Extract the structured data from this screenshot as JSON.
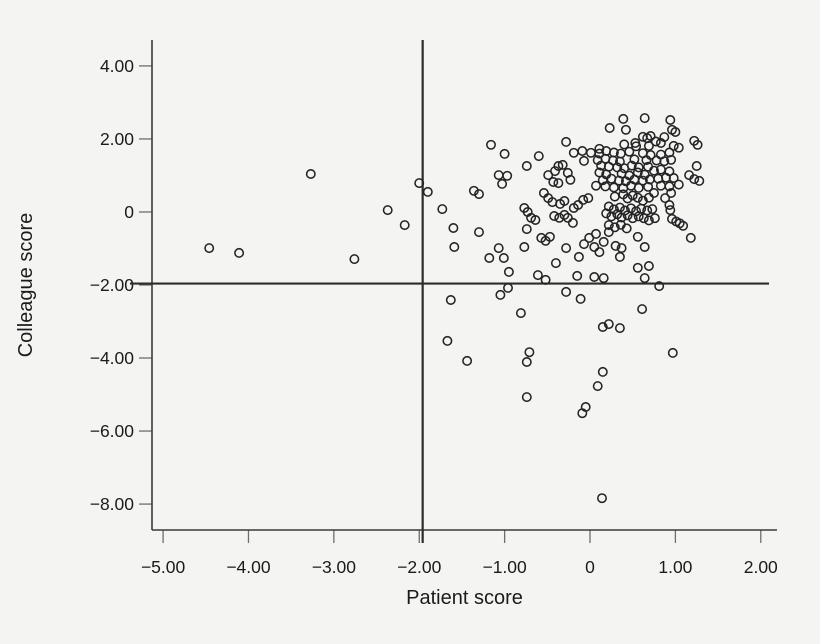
{
  "colors": {
    "background": "#f4f4f3",
    "axis_line": "#3a3a3a",
    "tick_mark": "#6e6e6e",
    "label_text": "#1b1b1b",
    "reference_line": "#2c2c2c",
    "marker_stroke": "#242424"
  },
  "chart_data": {
    "type": "scatter",
    "title": "",
    "xlabel": "Patient score",
    "ylabel": "Colleague score",
    "xlim": [
      -5.13,
      2.19
    ],
    "ylim": [
      -8.71,
      4.71
    ],
    "grid": false,
    "legend": null,
    "marker": {
      "shape": "open-circle",
      "radius_px": 4.2,
      "stroke": "#242424"
    },
    "x_ticks": {
      "values": [
        -5,
        -4,
        -3,
        -2,
        -1,
        0,
        1,
        2
      ],
      "labels": [
        "−5.00",
        "−4.00",
        "−3.00",
        "−2.00",
        "−1.00",
        "0",
        "1.00",
        "2.00"
      ]
    },
    "y_ticks": {
      "values": [
        4,
        2,
        0,
        -2,
        -4,
        -6,
        -8
      ],
      "labels": [
        "4.00",
        "2.00",
        "0",
        "−2.00",
        "−4.00",
        "−6.00",
        "−8.00"
      ]
    },
    "reference_lines": {
      "vertical_x": -1.96,
      "horizontal_y": -1.96
    },
    "points": [
      [
        -4.46,
        -0.99
      ],
      [
        -4.11,
        -1.12
      ],
      [
        -3.27,
        1.04
      ],
      [
        -2.76,
        -1.29
      ],
      [
        -2.37,
        0.05
      ],
      [
        -2.17,
        -0.36
      ],
      [
        -2.0,
        0.79
      ],
      [
        -1.9,
        0.55
      ],
      [
        -1.73,
        0.08
      ],
      [
        -1.67,
        -3.53
      ],
      [
        -1.63,
        -2.41
      ],
      [
        -1.6,
        -0.44
      ],
      [
        -1.59,
        -0.96
      ],
      [
        -1.44,
        -4.08
      ],
      [
        -1.36,
        0.58
      ],
      [
        -1.3,
        0.49
      ],
      [
        -1.3,
        -0.55
      ],
      [
        -1.18,
        -1.26
      ],
      [
        -1.16,
        1.84
      ],
      [
        -1.07,
        1.01
      ],
      [
        -1.07,
        -0.99
      ],
      [
        -1.05,
        -2.27
      ],
      [
        -1.03,
        0.77
      ],
      [
        -1.01,
        -1.26
      ],
      [
        -1.0,
        1.59
      ],
      [
        -0.97,
        0.99
      ],
      [
        -0.96,
        -2.08
      ],
      [
        -0.95,
        -1.64
      ],
      [
        -0.81,
        -2.77
      ],
      [
        -0.77,
        0.11
      ],
      [
        -0.77,
        -0.96
      ],
      [
        -0.74,
        1.26
      ],
      [
        -0.74,
        -0.47
      ],
      [
        -0.74,
        -4.11
      ],
      [
        -0.74,
        -5.07
      ],
      [
        -0.73,
        0.0
      ],
      [
        -0.71,
        -3.84
      ],
      [
        -0.69,
        -0.16
      ],
      [
        -0.64,
        -0.22
      ],
      [
        -0.61,
        -1.73
      ],
      [
        -0.6,
        1.53
      ],
      [
        -0.57,
        -0.71
      ],
      [
        -0.54,
        0.52
      ],
      [
        -0.52,
        -0.79
      ],
      [
        -0.52,
        -1.86
      ],
      [
        -0.49,
        1.01
      ],
      [
        -0.49,
        0.38
      ],
      [
        -0.47,
        -0.68
      ],
      [
        -0.44,
        0.27
      ],
      [
        -0.43,
        0.82
      ],
      [
        -0.42,
        -0.11
      ],
      [
        -0.41,
        1.12
      ],
      [
        -0.4,
        -1.4
      ],
      [
        -0.37,
        1.26
      ],
      [
        -0.37,
        0.79
      ],
      [
        -0.36,
        -0.16
      ],
      [
        -0.35,
        0.22
      ],
      [
        -0.32,
        1.29
      ],
      [
        -0.3,
        0.3
      ],
      [
        -0.3,
        -0.08
      ],
      [
        -0.28,
        1.92
      ],
      [
        -0.28,
        -0.99
      ],
      [
        -0.28,
        -2.19
      ],
      [
        -0.26,
        1.07
      ],
      [
        -0.26,
        -0.16
      ],
      [
        -0.23,
        0.88
      ],
      [
        -0.2,
        -0.3
      ],
      [
        -0.19,
        1.62
      ],
      [
        -0.19,
        0.11
      ],
      [
        -0.15,
        -1.75
      ],
      [
        -0.14,
        0.19
      ],
      [
        -0.13,
        -1.23
      ],
      [
        -0.11,
        -2.38
      ],
      [
        -0.09,
        1.67
      ],
      [
        -0.09,
        -5.51
      ],
      [
        -0.08,
        0.33
      ],
      [
        -0.07,
        1.4
      ],
      [
        -0.07,
        -0.88
      ],
      [
        -0.05,
        -5.34
      ],
      [
        -0.02,
        0.38
      ],
      [
        -0.01,
        -0.71
      ],
      [
        0.01,
        1.62
      ],
      [
        0.05,
        -0.96
      ],
      [
        0.05,
        -1.78
      ],
      [
        0.07,
        -0.6
      ],
      [
        0.07,
        0.72
      ],
      [
        0.09,
        1.42
      ],
      [
        0.09,
        -4.77
      ],
      [
        0.11,
        1.73
      ],
      [
        0.11,
        1.6
      ],
      [
        0.19,
        1.67
      ],
      [
        0.28,
        1.63
      ],
      [
        0.36,
        1.6
      ],
      [
        0.46,
        1.65
      ],
      [
        0.62,
        1.61
      ],
      [
        0.71,
        1.56
      ],
      [
        0.18,
        1.46
      ],
      [
        0.27,
        1.41
      ],
      [
        0.35,
        1.38
      ],
      [
        0.52,
        1.44
      ],
      [
        0.66,
        1.42
      ],
      [
        0.13,
        1.27
      ],
      [
        0.22,
        1.24
      ],
      [
        0.32,
        1.22
      ],
      [
        0.4,
        1.2
      ],
      [
        0.49,
        1.27
      ],
      [
        0.57,
        1.22
      ],
      [
        0.68,
        1.24
      ],
      [
        0.11,
        1.08
      ],
      [
        0.19,
        1.03
      ],
      [
        0.37,
        1.05
      ],
      [
        0.46,
        1.0
      ],
      [
        0.56,
        1.08
      ],
      [
        0.64,
        1.02
      ],
      [
        0.15,
        0.87
      ],
      [
        0.25,
        0.91
      ],
      [
        0.34,
        0.86
      ],
      [
        0.42,
        0.84
      ],
      [
        0.52,
        0.89
      ],
      [
        0.62,
        0.86
      ],
      [
        0.7,
        0.89
      ],
      [
        0.18,
        0.7
      ],
      [
        0.28,
        0.67
      ],
      [
        0.39,
        0.65
      ],
      [
        0.48,
        0.72
      ],
      [
        0.57,
        0.66
      ],
      [
        0.68,
        0.69
      ],
      [
        0.29,
        0.42
      ],
      [
        0.39,
        0.48
      ],
      [
        0.44,
        0.37
      ],
      [
        0.5,
        0.45
      ],
      [
        0.56,
        0.39
      ],
      [
        0.62,
        0.31
      ],
      [
        0.69,
        0.39
      ],
      [
        0.88,
        0.38
      ],
      [
        0.22,
        0.15
      ],
      [
        0.28,
        0.07
      ],
      [
        0.35,
        0.12
      ],
      [
        0.41,
        0.04
      ],
      [
        0.48,
        0.1
      ],
      [
        0.54,
        0.02
      ],
      [
        0.6,
        0.09
      ],
      [
        0.67,
        0.04
      ],
      [
        0.73,
        0.08
      ],
      [
        0.19,
        -0.04
      ],
      [
        0.25,
        -0.12
      ],
      [
        0.32,
        -0.06
      ],
      [
        0.37,
        -0.15
      ],
      [
        0.44,
        -0.09
      ],
      [
        0.5,
        -0.17
      ],
      [
        0.57,
        -0.12
      ],
      [
        0.63,
        -0.17
      ],
      [
        0.69,
        -0.23
      ],
      [
        0.76,
        -0.17
      ],
      [
        0.22,
        -0.36
      ],
      [
        0.29,
        -0.42
      ],
      [
        0.36,
        -0.35
      ],
      [
        0.43,
        -0.45
      ],
      [
        0.4,
        1.85
      ],
      [
        0.54,
        1.8
      ],
      [
        0.69,
        1.81
      ],
      [
        0.23,
        2.3
      ],
      [
        0.39,
        2.55
      ],
      [
        0.42,
        2.25
      ],
      [
        0.53,
        1.89
      ],
      [
        0.62,
        2.06
      ],
      [
        0.64,
        2.57
      ],
      [
        0.67,
        2.02
      ],
      [
        0.71,
        2.08
      ],
      [
        0.77,
        1.93
      ],
      [
        0.83,
        1.89
      ],
      [
        0.87,
        2.05
      ],
      [
        0.94,
        2.52
      ],
      [
        0.96,
        2.25
      ],
      [
        1.0,
        2.19
      ],
      [
        1.22,
        1.95
      ],
      [
        0.98,
        1.81
      ],
      [
        1.04,
        1.76
      ],
      [
        0.83,
        1.57
      ],
      [
        0.93,
        1.63
      ],
      [
        0.78,
        1.41
      ],
      [
        0.87,
        1.39
      ],
      [
        0.95,
        1.43
      ],
      [
        0.75,
        1.13
      ],
      [
        0.83,
        1.16
      ],
      [
        0.93,
        1.11
      ],
      [
        0.8,
        0.91
      ],
      [
        0.89,
        0.94
      ],
      [
        0.98,
        0.93
      ],
      [
        1.04,
        0.75
      ],
      [
        0.83,
        0.72
      ],
      [
        0.93,
        0.7
      ],
      [
        0.75,
        0.52
      ],
      [
        0.95,
        0.52
      ],
      [
        1.26,
        1.84
      ],
      [
        1.25,
        1.26
      ],
      [
        1.16,
        1.01
      ],
      [
        1.22,
        0.9
      ],
      [
        1.28,
        0.85
      ],
      [
        0.93,
        0.19
      ],
      [
        0.94,
        0.05
      ],
      [
        0.96,
        -0.19
      ],
      [
        1.01,
        -0.26
      ],
      [
        1.05,
        -0.31
      ],
      [
        1.09,
        -0.38
      ],
      [
        1.18,
        -0.71
      ],
      [
        0.56,
        -0.68
      ],
      [
        0.3,
        -0.93
      ],
      [
        0.37,
        -0.99
      ],
      [
        0.64,
        -0.96
      ],
      [
        0.11,
        -1.1
      ],
      [
        0.16,
        -0.82
      ],
      [
        0.22,
        -0.55
      ],
      [
        0.16,
        -1.81
      ],
      [
        0.35,
        -1.23
      ],
      [
        0.56,
        -1.53
      ],
      [
        0.69,
        -1.48
      ],
      [
        0.64,
        -1.81
      ],
      [
        0.81,
        -2.03
      ],
      [
        0.61,
        -2.66
      ],
      [
        0.15,
        -3.15
      ],
      [
        0.22,
        -3.07
      ],
      [
        0.35,
        -3.18
      ],
      [
        0.97,
        -3.86
      ],
      [
        0.15,
        -4.38
      ],
      [
        0.14,
        -7.84
      ]
    ]
  }
}
